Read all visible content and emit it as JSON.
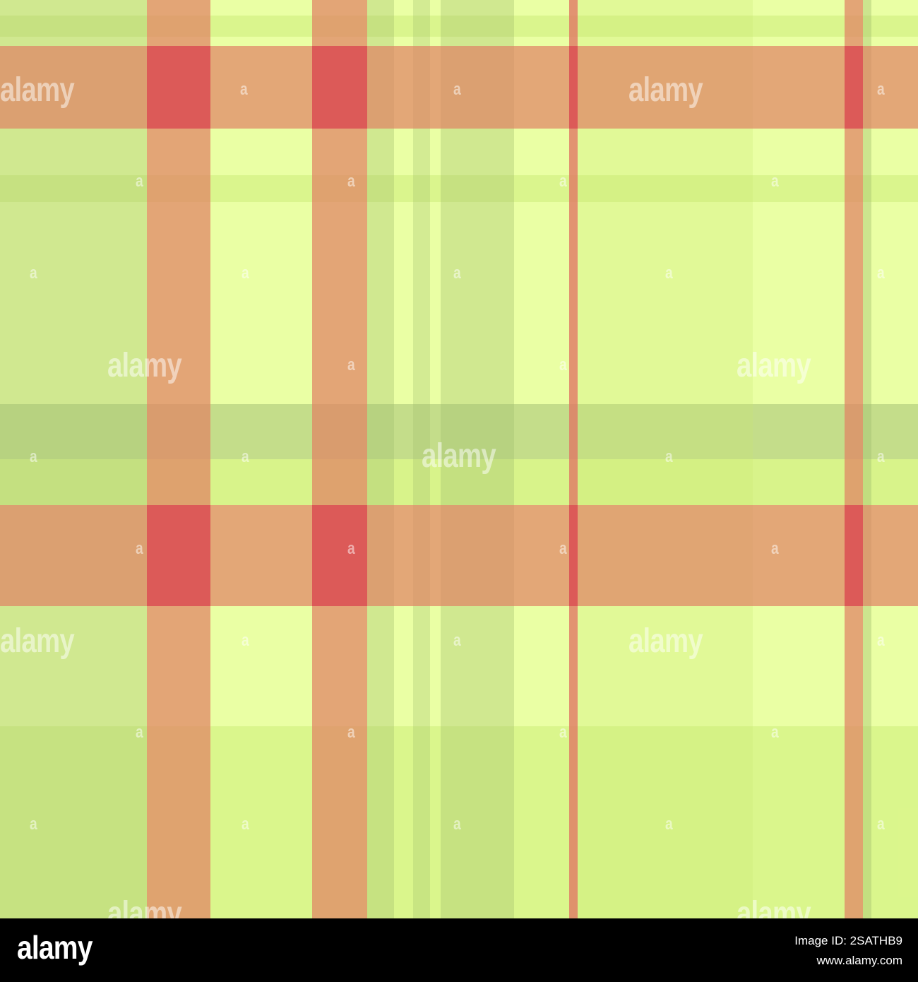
{
  "image": {
    "description_colors": {
      "base": "#eaffa4",
      "green_band": "#c3d98a",
      "salmon": "#e08a6a",
      "orange": "#d8a060",
      "red": "#d85858"
    }
  },
  "watermark": {
    "big_text": "alamy",
    "small_text": "a"
  },
  "footer": {
    "logo": "alamy",
    "image_id": "Image ID: 2SATHB9",
    "url": "www.alamy.com"
  }
}
